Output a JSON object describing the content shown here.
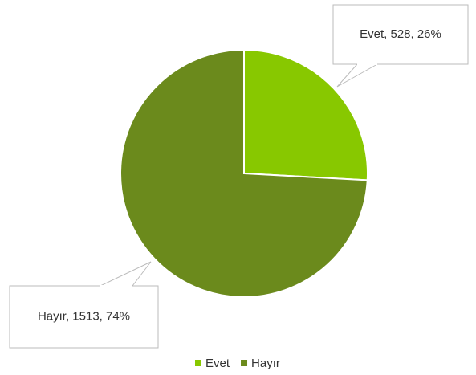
{
  "chart_data": {
    "type": "pie",
    "categories": [
      "Evet",
      "Hayır"
    ],
    "values": [
      528,
      1513
    ],
    "value_labels": [
      "Evet, 528, 26%",
      "Hayır, 1513, 74%"
    ],
    "colors": [
      "#88c800",
      "#6b8a1c"
    ],
    "legend": "bottom"
  }
}
